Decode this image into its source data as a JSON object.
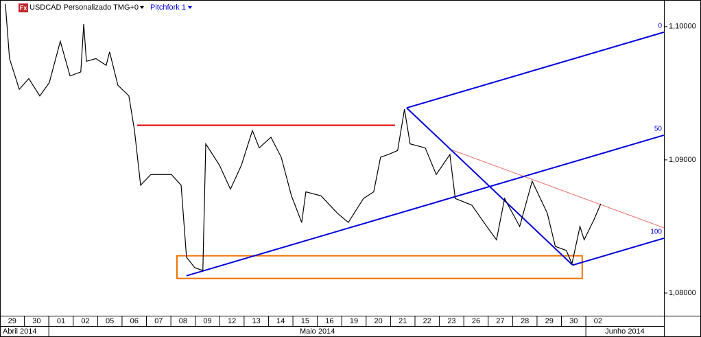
{
  "chart_data": {
    "type": "line",
    "logo_text": "Fx",
    "title": "USDCAD Personalizado TMG+0",
    "categories": [
      "29",
      "30",
      "01",
      "02",
      "05",
      "06",
      "07",
      "08",
      "09",
      "12",
      "13",
      "14",
      "15",
      "16",
      "19",
      "20",
      "21",
      "22",
      "23",
      "26",
      "27",
      "28",
      "29",
      "30",
      "02"
    ],
    "months": [
      "Abril 2014",
      "Maio 2014",
      "Junho 2014"
    ],
    "xlim": [
      0,
      27.2
    ],
    "ylim": [
      1.0783,
      1.102
    ],
    "yticks": [
      {
        "value": 1.08,
        "label": "1,08000"
      },
      {
        "value": 1.09,
        "label": "1,09000"
      },
      {
        "value": 1.1,
        "label": "1,10000"
      }
    ],
    "series": [
      {
        "name": "USDCAD",
        "color": "#000000",
        "x": [
          0.22,
          0.39,
          0.79,
          1.18,
          1.63,
          2.02,
          2.47,
          2.87,
          3.31,
          3.43,
          3.54,
          3.93,
          4.35,
          4.49,
          4.83,
          5.28,
          5.51,
          5.76,
          6.18,
          6.6,
          7.02,
          7.42,
          7.64,
          7.98,
          8.31,
          8.43,
          8.99,
          9.44,
          9.89,
          10.34,
          10.62,
          11.1,
          11.52,
          11.94,
          12.36,
          12.53,
          13.15,
          13.82,
          14.27,
          14.89,
          15.31,
          15.59,
          15.9,
          16.29,
          16.57,
          16.8,
          17.42,
          17.87,
          18.43,
          18.65,
          19.33,
          19.94,
          20.34,
          20.67,
          21.29,
          21.8,
          22.42,
          22.75,
          23.2,
          23.43,
          23.76,
          23.93,
          24.33,
          24.61
        ],
        "values": [
          1.1017,
          1.0976,
          1.0953,
          1.0961,
          1.0948,
          1.0958,
          1.0989,
          1.0963,
          1.0966,
          1.1002,
          1.0974,
          1.0976,
          1.0971,
          1.0981,
          1.0956,
          1.0948,
          1.0922,
          1.0881,
          1.0889,
          1.0889,
          1.0889,
          1.0881,
          1.0827,
          1.0819,
          1.0817,
          1.0912,
          1.0896,
          1.0878,
          1.0896,
          1.0922,
          1.0909,
          1.0917,
          1.0902,
          1.0873,
          1.0853,
          1.0876,
          1.0873,
          1.086,
          1.0853,
          1.0871,
          1.0876,
          1.0902,
          1.0904,
          1.0907,
          1.0938,
          1.0912,
          1.0909,
          1.0889,
          1.0904,
          1.0871,
          1.0866,
          1.085,
          1.084,
          1.0871,
          1.085,
          1.0884,
          1.086,
          1.0835,
          1.0832,
          1.0822,
          1.085,
          1.084,
          1.0855,
          1.0867
        ]
      }
    ],
    "hline": {
      "x": [
        5.62,
        16.18
      ],
      "y": 1.0926,
      "color": "#e00000"
    },
    "trendline": {
      "x": [
        18.43,
        27.2
      ],
      "y": [
        1.0908,
        1.0849
      ],
      "color": "#f07070"
    },
    "rectangle": {
      "x": [
        7.25,
        23.85
      ],
      "y": [
        1.0811,
        1.0828
      ],
      "color": "#f07000"
    },
    "pitchfork": {
      "label": "Pitchfork 1",
      "color": "#0000dd",
      "anchors_x": [
        7.64,
        16.66,
        23.46
      ],
      "anchors_y": [
        1.0813,
        1.0939,
        1.0821
      ],
      "levels": [
        0,
        50,
        100
      ]
    }
  }
}
